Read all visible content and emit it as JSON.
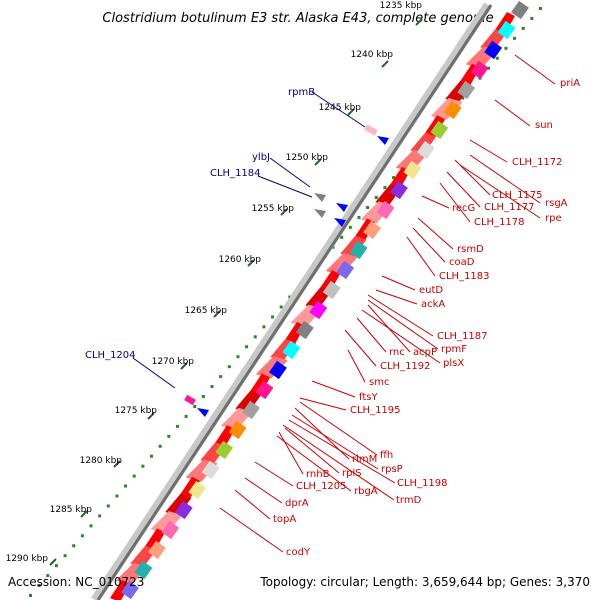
{
  "title": "Clostridium botulinum E3 str. Alaska E43, complete genome",
  "footer": {
    "accession": "Accession: NC_010723",
    "topology": "Topology: circular; Length: 3,659,644 bp; Genes: 3,370"
  },
  "colors": {
    "forward_label": "#00008b",
    "reverse_label": "#cc0000",
    "gene_forward": "#0000ff",
    "gene_reverse": "#ff0000",
    "backbone": "#888888",
    "tick": "#228b22"
  },
  "axis": {
    "ticks": [
      "1235 kbp",
      "1240 kbp",
      "1245 kbp",
      "1250 kbp",
      "1255 kbp",
      "1260 kbp",
      "1265 kbp",
      "1270 kbp",
      "1275 kbp",
      "1280 kbp",
      "1285 kbp",
      "1290 kbp"
    ]
  },
  "forward_genes": [
    "rpmB",
    "ylbJ",
    "CLH_1184",
    "CLH_1204"
  ],
  "reverse_genes": [
    "priA",
    "sun",
    "CLH_1172",
    "CLH_1175",
    "rsgA",
    "CLH_1177",
    "rpe",
    "CLH_1178",
    "recG",
    "rsmD",
    "coaD",
    "CLH_1183",
    "eutD",
    "ackA",
    "CLH_1187",
    "rpmF",
    "acpP",
    "plsX",
    "rnc",
    "CLH_1192",
    "smc",
    "ftsY",
    "CLH_1195",
    "ffh",
    "rimM",
    "rpsP",
    "CLH_1198",
    "trmD",
    "rnhB",
    "rplS",
    "CLH_1205",
    "rbgA",
    "dprA",
    "topA",
    "codY"
  ]
}
